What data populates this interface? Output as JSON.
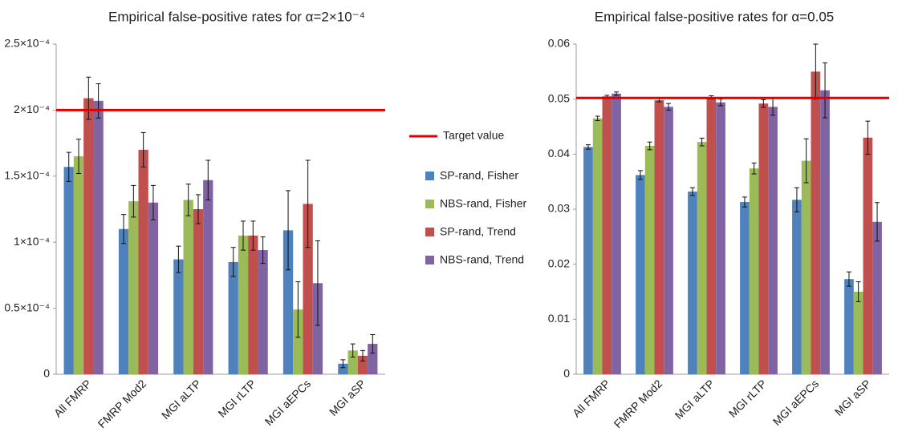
{
  "chart_data": [
    {
      "type": "bar",
      "title": "Empirical false-positive rates for α=2×10⁻⁴",
      "categories": [
        "All FMRP",
        "FMRP Mod2",
        "MGI aLTP",
        "MGI rLTP",
        "MGI aEPCs",
        "MGI aSP"
      ],
      "series": [
        {
          "name": "SP-rand, Fisher",
          "color": "#4f81bd",
          "values": [
            0.000157,
            0.00011,
            8.7e-05,
            8.5e-05,
            0.000109,
            8e-06
          ],
          "errors": [
            1.1e-05,
            1.1e-05,
            1e-05,
            1.1e-05,
            3e-05,
            3e-06
          ]
        },
        {
          "name": "NBS-rand, Fisher",
          "color": "#9bbb59",
          "values": [
            0.000165,
            0.000131,
            0.000132,
            0.000105,
            4.9e-05,
            1.8e-05
          ],
          "errors": [
            1.3e-05,
            1.2e-05,
            1.2e-05,
            1.1e-05,
            2.1e-05,
            5e-06
          ]
        },
        {
          "name": "SP-rand, Trend",
          "color": "#c0504d",
          "values": [
            0.000209,
            0.00017,
            0.000125,
            0.000105,
            0.000129,
            1.4e-05
          ],
          "errors": [
            1.6e-05,
            1.3e-05,
            1.1e-05,
            1.1e-05,
            3.3e-05,
            4e-06
          ]
        },
        {
          "name": "NBS-rand, Trend",
          "color": "#8064a2",
          "values": [
            0.000207,
            0.00013,
            0.000147,
            9.4e-05,
            6.9e-05,
            2.3e-05
          ],
          "errors": [
            1.3e-05,
            1.3e-05,
            1.5e-05,
            1e-05,
            3.2e-05,
            7e-06
          ]
        }
      ],
      "target": 0.0002,
      "target_label": "Target value",
      "target_color": "#e00000",
      "ylim": [
        0,
        0.00025
      ],
      "yticks": [
        0,
        {
          "value": 5e-05,
          "label": "0.5×10⁻⁴"
        },
        {
          "value": 0.0001,
          "label": "1×10⁻⁴"
        },
        {
          "value": 0.00015,
          "label": "1.5×10⁻⁴"
        },
        {
          "value": 0.0002,
          "label": "2×10⁻⁴"
        },
        {
          "value": 0.00025,
          "label": "2.5×10⁻⁴"
        }
      ]
    },
    {
      "type": "bar",
      "title": "Empirical false-positive rates for α=0.05",
      "categories": [
        "All FMRP",
        "FMRP Mod2",
        "MGI aLTP",
        "MGI rLTP",
        "MGI aEPCs",
        "MGI aSP"
      ],
      "series": [
        {
          "color": "#4f81bd",
          "values": [
            0.0413,
            0.0362,
            0.0332,
            0.0313,
            0.0317,
            0.0173
          ],
          "errors": [
            0.0004,
            0.0008,
            0.0007,
            0.0009,
            0.0022,
            0.0013
          ]
        },
        {
          "color": "#9bbb59",
          "values": [
            0.0465,
            0.0415,
            0.0422,
            0.0374,
            0.0388,
            0.015
          ],
          "errors": [
            0.0004,
            0.0007,
            0.0007,
            0.001,
            0.004,
            0.0018
          ]
        },
        {
          "color": "#c0504d",
          "values": [
            0.0505,
            0.0498,
            0.0503,
            0.0492,
            0.055,
            0.043
          ],
          "errors": [
            0.0002,
            0.0003,
            0.0003,
            0.0007,
            0.005,
            0.003
          ]
        },
        {
          "color": "#8064a2",
          "values": [
            0.051,
            0.0486,
            0.0494,
            0.0486,
            0.0516,
            0.0277
          ],
          "errors": [
            0.0003,
            0.0006,
            0.0006,
            0.0015,
            0.005,
            0.0035
          ]
        }
      ],
      "target": 0.0502,
      "target_color": "#e00000",
      "ylim": [
        0,
        0.06
      ],
      "yticks": [
        0,
        0.01,
        0.02,
        0.03,
        0.04,
        0.05,
        0.06
      ]
    }
  ]
}
